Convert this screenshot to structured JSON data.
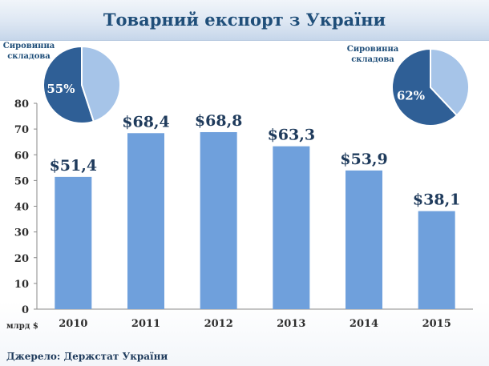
{
  "title": "Товарний експорт з України",
  "source": "Джерело: Держстат України",
  "chart_data": [
    {
      "type": "bar",
      "categories": [
        "2010",
        "2011",
        "2012",
        "2013",
        "2014",
        "2015"
      ],
      "values": [
        51.4,
        68.4,
        68.8,
        63.3,
        53.9,
        38.1
      ],
      "data_labels": [
        "$51,4",
        "$68,4",
        "$68,8",
        "$63,3",
        "$53,9",
        "$38,1"
      ],
      "unit_label": "млрд $",
      "ylim": [
        0,
        80
      ],
      "yticks": [
        0,
        10,
        20,
        30,
        40,
        50,
        60,
        70,
        80
      ],
      "grid": false,
      "bar_color": "#6fa0dc"
    },
    {
      "type": "pie",
      "label": "Сировинна складова",
      "values": [
        55,
        45
      ],
      "data_labels": [
        "55%",
        ""
      ],
      "colors": [
        "#2f5f96",
        "#a6c4e8"
      ]
    },
    {
      "type": "pie",
      "label": "Сировинна складова",
      "values": [
        62,
        38
      ],
      "data_labels": [
        "62%",
        ""
      ],
      "colors": [
        "#2f5f96",
        "#a6c4e8"
      ]
    }
  ]
}
